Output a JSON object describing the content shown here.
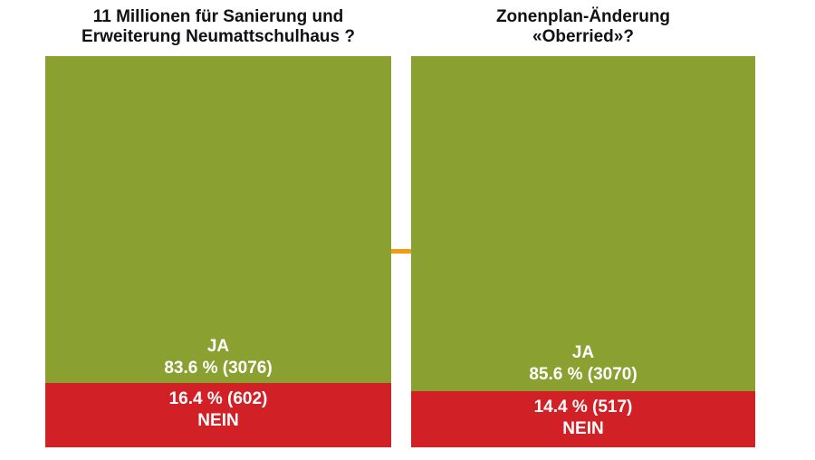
{
  "colors": {
    "ja": "#8aa030",
    "nein": "#d22027",
    "divider": "#f39c12"
  },
  "chart_data": [
    {
      "type": "bar",
      "title": "11 Millionen für Sanierung und\nErweiterung Neumattschulhaus ?",
      "series": [
        {
          "name": "JA",
          "percent": 83.6,
          "count": 3076,
          "value_label": "83.6 % (3076)"
        },
        {
          "name": "NEIN",
          "percent": 16.4,
          "count": 602,
          "value_label": "16.4 % (602)"
        }
      ]
    },
    {
      "type": "bar",
      "title": "Zonenplan-Änderung\n«Oberried»?",
      "series": [
        {
          "name": "JA",
          "percent": 85.6,
          "count": 3070,
          "value_label": "85.6 % (3070)"
        },
        {
          "name": "NEIN",
          "percent": 14.4,
          "count": 517,
          "value_label": "14.4 % (517)"
        }
      ]
    }
  ]
}
